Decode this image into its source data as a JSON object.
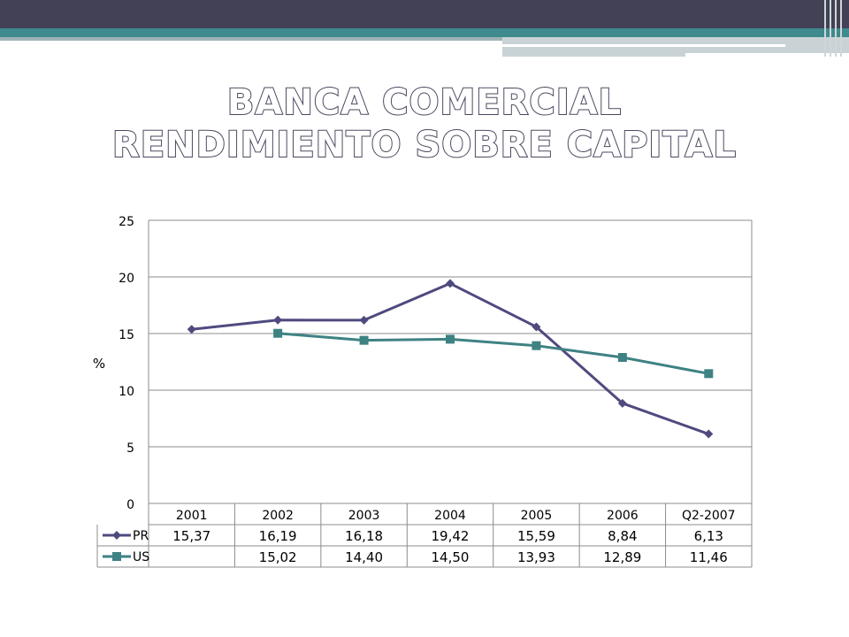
{
  "title": {
    "line1": "BANCA COMERCIAL",
    "line2": "RENDIMIENTO SOBRE CAPITAL"
  },
  "chart_data": {
    "type": "line",
    "categories": [
      "2001",
      "2002",
      "2003",
      "2004",
      "2005",
      "2006",
      "Q2-2007"
    ],
    "ylabel": "%",
    "ylim": [
      0,
      25
    ],
    "yticks": [
      0,
      5,
      10,
      15,
      20,
      25
    ],
    "grid": true,
    "legend": "data-table",
    "series": [
      {
        "name": "PR",
        "values": [
          15.37,
          16.19,
          16.18,
          19.42,
          15.59,
          8.84,
          6.13
        ],
        "labels": [
          "15,37",
          "16,19",
          "16,18",
          "19,42",
          "15,59",
          "8,84",
          "6,13"
        ],
        "color": "#4f4a7e",
        "marker": "diamond"
      },
      {
        "name": "US",
        "values": [
          null,
          15.02,
          14.4,
          14.5,
          13.93,
          12.89,
          11.46
        ],
        "labels": [
          "",
          "15,02",
          "14,40",
          "14,50",
          "13,93",
          "12,89",
          "11,46"
        ],
        "color": "#3e8283",
        "marker": "square"
      }
    ]
  }
}
